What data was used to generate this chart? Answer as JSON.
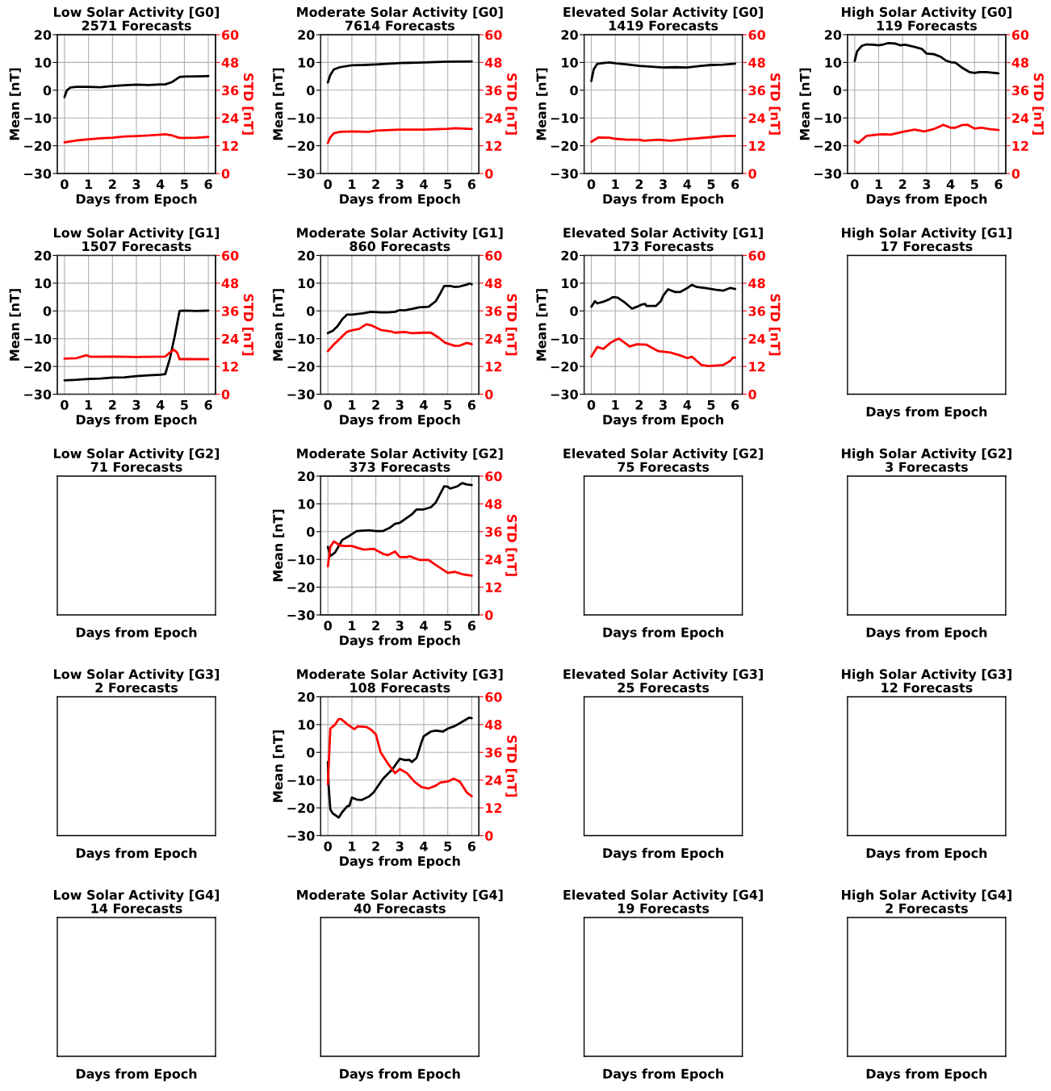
{
  "chart_data": [
    {
      "type": "line",
      "title": "Low Solar Activity [G0]\n2571 Forecasts",
      "xlabel": "Days from Epoch",
      "ylabel": "Mean [nT]",
      "y2label": "STD [nT]",
      "grid": true,
      "xlim": [
        -0.3,
        6.3
      ],
      "xticks": [
        0,
        1,
        2,
        3,
        4,
        5,
        6
      ],
      "ylim": [
        -30,
        20
      ],
      "yticks": [
        {
          "value": -30,
          "label": "−30"
        },
        {
          "value": -20,
          "label": "−20"
        },
        {
          "value": -10,
          "label": "−10"
        },
        0,
        10,
        20
      ],
      "y2lim": [
        0,
        60
      ],
      "y2ticks": [
        0,
        12,
        24,
        36,
        48,
        60
      ],
      "series": [
        {
          "color": "#000000",
          "x": [
            0,
            0.1,
            0.25,
            0.5,
            1,
            1.5,
            2,
            2.5,
            3,
            3.5,
            4,
            4.2,
            4.5,
            4.8,
            5,
            5.5,
            6
          ],
          "values": [
            -2.5,
            0,
            1,
            1.2,
            1.2,
            1.1,
            1.5,
            1.8,
            2,
            1.9,
            2.1,
            2.1,
            3,
            4.8,
            4.9,
            5,
            5.1
          ]
        },
        {
          "color": "#ff0000",
          "axis": "y2",
          "x": [
            0,
            0.5,
            1,
            1.5,
            2,
            2.5,
            3,
            3.5,
            4,
            4.2,
            4.5,
            4.8,
            5,
            5.5,
            6
          ],
          "values": [
            13.5,
            14.3,
            14.8,
            15.2,
            15.5,
            16,
            16.2,
            16.4,
            16.8,
            17,
            16.4,
            15.4,
            15.4,
            15.5,
            15.8
          ]
        }
      ]
    },
    {
      "type": "line",
      "title": "Moderate Solar Activity [G0]\n7614 Forecasts",
      "xlabel": "Days from Epoch",
      "ylabel": "Mean [nT]",
      "y2label": "STD [nT]",
      "grid": true,
      "xlim": [
        -0.3,
        6.3
      ],
      "xticks": [
        0,
        1,
        2,
        3,
        4,
        5,
        6
      ],
      "ylim": [
        -30,
        20
      ],
      "yticks": [
        {
          "value": -30,
          "label": "−30"
        },
        {
          "value": -20,
          "label": "−20"
        },
        {
          "value": -10,
          "label": "−10"
        },
        0,
        10,
        20
      ],
      "y2lim": [
        0,
        60
      ],
      "y2ticks": [
        0,
        12,
        24,
        36,
        48,
        60
      ],
      "series": [
        {
          "color": "#000000",
          "x": [
            0,
            0.1,
            0.25,
            0.5,
            1,
            1.5,
            2,
            3,
            4,
            5,
            6
          ],
          "values": [
            2.8,
            5.5,
            7.5,
            8.3,
            9,
            9.1,
            9.3,
            9.8,
            10,
            10.3,
            10.4
          ]
        },
        {
          "color": "#ff0000",
          "axis": "y2",
          "x": [
            0,
            0.1,
            0.25,
            0.5,
            1,
            1.7,
            2,
            3,
            4,
            5,
            5.3,
            6
          ],
          "values": [
            13.2,
            15.6,
            17.4,
            18,
            18.2,
            18,
            18.5,
            19,
            19,
            19.3,
            19.6,
            19.2
          ]
        }
      ]
    },
    {
      "type": "line",
      "title": "Elevated Solar Activity [G0]\n1419 Forecasts",
      "xlabel": "Days from Epoch",
      "ylabel": "Mean [nT]",
      "y2label": "STD [nT]",
      "grid": true,
      "xlim": [
        -0.3,
        6.3
      ],
      "xticks": [
        0,
        1,
        2,
        3,
        4,
        5,
        6
      ],
      "ylim": [
        -30,
        20
      ],
      "yticks": [
        {
          "value": -30,
          "label": "−30"
        },
        {
          "value": -20,
          "label": "−20"
        },
        {
          "value": -10,
          "label": "−10"
        },
        0,
        10,
        20
      ],
      "y2lim": [
        0,
        60
      ],
      "y2ticks": [
        0,
        12,
        24,
        36,
        48,
        60
      ],
      "series": [
        {
          "color": "#000000",
          "x": [
            0,
            0.1,
            0.25,
            0.5,
            0.75,
            1,
            1.5,
            2,
            2.5,
            3,
            3.5,
            4,
            4.5,
            5,
            5.5,
            6
          ],
          "values": [
            3.3,
            7.5,
            9.5,
            9.8,
            10,
            9.7,
            9.3,
            8.8,
            8.5,
            8.2,
            8.3,
            8.2,
            8.7,
            9.1,
            9.2,
            9.6
          ]
        },
        {
          "color": "#ff0000",
          "axis": "y2",
          "x": [
            0,
            0.3,
            0.75,
            1,
            1.5,
            2,
            2.2,
            2.8,
            3.3,
            4,
            5,
            5.5,
            6
          ],
          "values": [
            13.7,
            15.6,
            15.5,
            15,
            14.6,
            14.6,
            14.2,
            14.6,
            14.2,
            14.9,
            15.7,
            16.2,
            16.3
          ]
        }
      ]
    },
    {
      "type": "line",
      "title": "High Solar Activity [G0]\n119 Forecasts",
      "xlabel": "Days from Epoch",
      "ylabel": "Mean [nT]",
      "y2label": "STD [nT]",
      "grid": true,
      "xlim": [
        -0.3,
        6.3
      ],
      "xticks": [
        0,
        1,
        2,
        3,
        4,
        5,
        6
      ],
      "ylim": [
        -30,
        20
      ],
      "yticks": [
        {
          "value": -30,
          "label": "−30"
        },
        {
          "value": -20,
          "label": "−20"
        },
        {
          "value": -10,
          "label": "−10"
        },
        0,
        10,
        20
      ],
      "y2lim": [
        0,
        60
      ],
      "y2ticks": [
        0,
        12,
        24,
        36,
        48,
        60
      ],
      "series": [
        {
          "color": "#000000",
          "x": [
            0,
            0.1,
            0.3,
            0.5,
            0.75,
            1,
            1.2,
            1.4,
            1.7,
            1.9,
            2.1,
            2.5,
            2.8,
            3,
            3.3,
            3.6,
            3.8,
            4,
            4.2,
            4.5,
            4.8,
            5,
            5.2,
            5.5,
            6
          ],
          "values": [
            10.5,
            14,
            16,
            16.5,
            16.4,
            16.2,
            16.5,
            17,
            16.8,
            16.2,
            16.4,
            15.6,
            14.9,
            13.2,
            13,
            12,
            10.7,
            10.1,
            9.9,
            8,
            6.5,
            6.2,
            6.5,
            6.5,
            6.1
          ]
        },
        {
          "color": "#ff0000",
          "axis": "y2",
          "x": [
            0,
            0.15,
            0.5,
            1,
            1.3,
            1.5,
            2,
            2.5,
            2.9,
            3.3,
            3.7,
            4,
            4.2,
            4.5,
            4.7,
            5,
            5.3,
            5.6,
            6
          ],
          "values": [
            14,
            13.2,
            16.3,
            16.9,
            17,
            16.8,
            18,
            19,
            18.2,
            19.2,
            21,
            19.8,
            19.8,
            21,
            21.1,
            19.4,
            19.8,
            19.2,
            18.8
          ]
        }
      ]
    },
    {
      "type": "line",
      "title": "Low Solar Activity [G1]\n1507 Forecasts",
      "xlabel": "Days from Epoch",
      "ylabel": "Mean [nT]",
      "y2label": "STD [nT]",
      "grid": true,
      "xlim": [
        -0.3,
        6.3
      ],
      "xticks": [
        0,
        1,
        2,
        3,
        4,
        5,
        6
      ],
      "ylim": [
        -30,
        20
      ],
      "yticks": [
        {
          "value": -30,
          "label": "−30"
        },
        {
          "value": -20,
          "label": "−20"
        },
        {
          "value": -10,
          "label": "−10"
        },
        0,
        10,
        20
      ],
      "y2lim": [
        0,
        60
      ],
      "y2ticks": [
        0,
        12,
        24,
        36,
        48,
        60
      ],
      "series": [
        {
          "color": "#000000",
          "x": [
            0,
            0.5,
            1,
            1.5,
            2,
            2.5,
            3,
            3.5,
            4,
            4.2,
            4.4,
            4.6,
            4.8,
            5,
            5.5,
            6
          ],
          "values": [
            -25,
            -24.8,
            -24.5,
            -24.4,
            -24,
            -23.9,
            -23.5,
            -23.2,
            -23,
            -22.8,
            -17,
            -9,
            0,
            0.1,
            0,
            0.1
          ]
        },
        {
          "color": "#ff0000",
          "axis": "y2",
          "x": [
            0,
            0.5,
            0.9,
            1.1,
            2,
            3,
            4.2,
            4.4,
            4.55,
            4.7,
            4.8,
            5,
            6
          ],
          "values": [
            15.4,
            15.6,
            16.8,
            16.2,
            16.3,
            16.1,
            16.3,
            18,
            19.2,
            18,
            15.1,
            15.2,
            15.1
          ]
        }
      ]
    },
    {
      "type": "line",
      "title": "Moderate Solar Activity [G1]\n860 Forecasts",
      "xlabel": "Days from Epoch",
      "ylabel": "Mean [nT]",
      "y2label": "STD [nT]",
      "grid": true,
      "xlim": [
        -0.3,
        6.3
      ],
      "xticks": [
        0,
        1,
        2,
        3,
        4,
        5,
        6
      ],
      "ylim": [
        -30,
        20
      ],
      "yticks": [
        {
          "value": -30,
          "label": "−30"
        },
        {
          "value": -20,
          "label": "−20"
        },
        {
          "value": -10,
          "label": "−10"
        },
        0,
        10,
        20
      ],
      "y2lim": [
        0,
        60
      ],
      "y2ticks": [
        0,
        12,
        24,
        36,
        48,
        60
      ],
      "series": [
        {
          "color": "#000000",
          "x": [
            0,
            0.2,
            0.4,
            0.6,
            0.8,
            1,
            1.5,
            1.8,
            2.2,
            2.5,
            2.8,
            3,
            3.2,
            3.5,
            3.8,
            4.2,
            4.5,
            4.7,
            4.85,
            5.1,
            5.3,
            5.5,
            5.8,
            5.9,
            6
          ],
          "values": [
            -8,
            -7.2,
            -5.5,
            -3,
            -1.3,
            -1.3,
            -0.8,
            -0.3,
            -0.5,
            -0.5,
            -0.3,
            0.3,
            0.2,
            0.7,
            1.3,
            1.5,
            3.5,
            6.5,
            9,
            9,
            8.6,
            8.8,
            9.5,
            9.9,
            9.6
          ]
        },
        {
          "color": "#ff0000",
          "axis": "y2",
          "x": [
            0,
            0.2,
            0.5,
            0.8,
            1,
            1.3,
            1.6,
            1.8,
            2.2,
            2.6,
            2.8,
            3.2,
            3.5,
            4,
            4.3,
            4.6,
            4.9,
            5.3,
            5.5,
            5.8,
            6
          ],
          "values": [
            18.6,
            21,
            24,
            27,
            27.6,
            28.2,
            30.2,
            29.8,
            27.8,
            27.2,
            26.6,
            26.9,
            26.4,
            26.6,
            26.6,
            24.6,
            22.2,
            20.9,
            21,
            22.2,
            21.6
          ]
        }
      ]
    },
    {
      "type": "line",
      "title": "Elevated Solar Activity [G1]\n173 Forecasts",
      "xlabel": "Days from Epoch",
      "ylabel": "Mean [nT]",
      "y2label": "STD [nT]",
      "grid": true,
      "xlim": [
        -0.3,
        6.3
      ],
      "xticks": [
        0,
        1,
        2,
        3,
        4,
        5,
        6
      ],
      "ylim": [
        -30,
        20
      ],
      "yticks": [
        {
          "value": -30,
          "label": "−30"
        },
        {
          "value": -20,
          "label": "−20"
        },
        {
          "value": -10,
          "label": "−10"
        },
        0,
        10,
        20
      ],
      "y2lim": [
        0,
        60
      ],
      "y2ticks": [
        0,
        12,
        24,
        36,
        48,
        60
      ],
      "series": [
        {
          "color": "#000000",
          "x": [
            0,
            0.15,
            0.25,
            0.5,
            0.75,
            0.9,
            1.1,
            1.4,
            1.7,
            1.9,
            2.1,
            2.25,
            2.3,
            2.7,
            2.9,
            3,
            3.2,
            3.5,
            3.7,
            4,
            4.2,
            4.4,
            4.8,
            5.2,
            5.5,
            5.8,
            6
          ],
          "values": [
            1.5,
            3.5,
            2.7,
            3.3,
            4.2,
            5,
            4.8,
            3,
            0.8,
            1.5,
            2.3,
            2.5,
            1.8,
            1.8,
            3.5,
            5.5,
            7.8,
            6.8,
            6.8,
            8.2,
            9.4,
            8.6,
            8.2,
            7.6,
            7.3,
            8.3,
            7.9
          ]
        },
        {
          "color": "#ff0000",
          "axis": "y2",
          "x": [
            0,
            0.25,
            0.5,
            0.8,
            1,
            1.15,
            1.4,
            1.6,
            1.9,
            2.3,
            2.8,
            3.3,
            3.7,
            4,
            4.2,
            4.4,
            4.6,
            4.9,
            5.5,
            5.8,
            5.9,
            6
          ],
          "values": [
            16.2,
            20.4,
            19.6,
            22.2,
            23.4,
            24,
            22.2,
            20.6,
            21.6,
            21.4,
            18.6,
            18,
            16.8,
            15.6,
            16.2,
            14.4,
            12.6,
            12.2,
            12.6,
            14.4,
            15.8,
            15.8
          ]
        }
      ]
    },
    {
      "type": "other",
      "title": "High Solar Activity [G1]\n17 Forecasts",
      "xlabel": "Days from Epoch"
    },
    {
      "type": "other",
      "title": "Low Solar Activity [G2]\n71 Forecasts",
      "xlabel": "Days from Epoch"
    },
    {
      "type": "line",
      "title": "Moderate Solar Activity [G2]\n373 Forecasts",
      "xlabel": "Days from Epoch",
      "ylabel": "Mean [nT]",
      "y2label": "STD [nT]",
      "grid": true,
      "xlim": [
        -0.3,
        6.3
      ],
      "xticks": [
        0,
        1,
        2,
        3,
        4,
        5,
        6
      ],
      "ylim": [
        -30,
        20
      ],
      "yticks": [
        {
          "value": -30,
          "label": "−30"
        },
        {
          "value": -20,
          "label": "−20"
        },
        {
          "value": -10,
          "label": "−10"
        },
        0,
        10,
        20
      ],
      "y2lim": [
        0,
        60
      ],
      "y2ticks": [
        0,
        12,
        24,
        36,
        48,
        60
      ],
      "series": [
        {
          "color": "#000000",
          "x": [
            0,
            0.1,
            0.3,
            0.6,
            0.9,
            1.2,
            1.7,
            2,
            2.3,
            2.6,
            2.8,
            3,
            3.5,
            3.7,
            4,
            4.3,
            4.5,
            4.85,
            5,
            5.1,
            5.4,
            5.6,
            5.8,
            6
          ],
          "values": [
            -5.5,
            -8.8,
            -7.5,
            -3,
            -1.5,
            0.2,
            0.5,
            0.2,
            0.2,
            1.5,
            2.8,
            3.2,
            6.2,
            8,
            8,
            8.8,
            10.5,
            16.3,
            16.2,
            15.5,
            16.3,
            17.5,
            17,
            16.8
          ]
        },
        {
          "color": "#ff0000",
          "axis": "y2",
          "x": [
            0,
            0.1,
            0.25,
            0.5,
            0.7,
            1,
            1.3,
            1.5,
            1.9,
            2.3,
            2.5,
            2.8,
            3,
            3.3,
            3.4,
            3.8,
            4.2,
            4.5,
            5,
            5.3,
            5.6,
            6
          ],
          "values": [
            21,
            29.4,
            31.8,
            30,
            29.8,
            29.8,
            28.8,
            28.2,
            28.6,
            26.4,
            25.8,
            27.4,
            25,
            25,
            25.4,
            23.8,
            23.8,
            21.6,
            18.2,
            18.6,
            17.6,
            17
          ]
        }
      ]
    },
    {
      "type": "other",
      "title": "Elevated Solar Activity [G2]\n75 Forecasts",
      "xlabel": "Days from Epoch"
    },
    {
      "type": "other",
      "title": "High Solar Activity [G2]\n3 Forecasts",
      "xlabel": "Days from Epoch"
    },
    {
      "type": "other",
      "title": "Low Solar Activity [G3]\n2 Forecasts",
      "xlabel": "Days from Epoch"
    },
    {
      "type": "line",
      "title": "Moderate Solar Activity [G3]\n108 Forecasts",
      "xlabel": "Days from Epoch",
      "ylabel": "Mean [nT]",
      "y2label": "STD [nT]",
      "grid": true,
      "xlim": [
        -0.3,
        6.3
      ],
      "xticks": [
        0,
        1,
        2,
        3,
        4,
        5,
        6
      ],
      "ylim": [
        -30,
        20
      ],
      "yticks": [
        {
          "value": -30,
          "label": "−30"
        },
        {
          "value": -20,
          "label": "−20"
        },
        {
          "value": -10,
          "label": "−10"
        },
        0,
        10,
        20
      ],
      "y2lim": [
        0,
        60
      ],
      "y2ticks": [
        0,
        12,
        24,
        36,
        48,
        60
      ],
      "series": [
        {
          "color": "#000000",
          "x": [
            0,
            0.03,
            0.1,
            0.2,
            0.45,
            0.6,
            0.8,
            0.9,
            1,
            1.2,
            1.4,
            1.7,
            1.9,
            2.3,
            2.7,
            3,
            3.2,
            3.4,
            3.5,
            3.7,
            3.9,
            4,
            4.3,
            4.5,
            4.8,
            5,
            5.3,
            5.6,
            5.9,
            6
          ],
          "values": [
            -3.5,
            -12,
            -20.5,
            -22,
            -23.5,
            -21.5,
            -19.5,
            -19.2,
            -16.3,
            -17,
            -17.2,
            -16,
            -14.5,
            -9.5,
            -6,
            -2.3,
            -2.8,
            -2.7,
            -3.5,
            -2,
            3.5,
            5.8,
            7.5,
            7.8,
            7.5,
            8.5,
            9.5,
            11,
            12.5,
            12.3
          ]
        },
        {
          "color": "#ff0000",
          "axis": "y2",
          "x": [
            0,
            0.1,
            0.3,
            0.45,
            0.55,
            0.8,
            1.1,
            1.25,
            1.6,
            1.8,
            2,
            2.2,
            2.5,
            2.8,
            3,
            3.3,
            3.6,
            3.9,
            4.2,
            4.5,
            4.7,
            5,
            5.25,
            5.5,
            5.8,
            6
          ],
          "values": [
            22.2,
            46.2,
            48,
            50.4,
            50.4,
            48.2,
            46,
            47.2,
            47,
            45.8,
            43.8,
            36,
            31.2,
            27,
            28.8,
            27,
            23.4,
            21,
            20.4,
            21.6,
            23,
            23.4,
            24.6,
            23.4,
            18.6,
            17
          ]
        }
      ]
    },
    {
      "type": "other",
      "title": "Elevated Solar Activity [G3]\n25 Forecasts",
      "xlabel": "Days from Epoch"
    },
    {
      "type": "other",
      "title": "High Solar Activity [G3]\n12 Forecasts",
      "xlabel": "Days from Epoch"
    },
    {
      "type": "other",
      "title": "Low Solar Activity [G4]\n14 Forecasts",
      "xlabel": "Days from Epoch"
    },
    {
      "type": "other",
      "title": "Moderate Solar Activity [G4]\n40 Forecasts",
      "xlabel": "Days from Epoch"
    },
    {
      "type": "other",
      "title": "Elevated Solar Activity [G4]\n19 Forecasts",
      "xlabel": "Days from Epoch"
    },
    {
      "type": "other",
      "title": "High Solar Activity [G4]\n2 Forecasts",
      "xlabel": "Days from Epoch"
    }
  ]
}
